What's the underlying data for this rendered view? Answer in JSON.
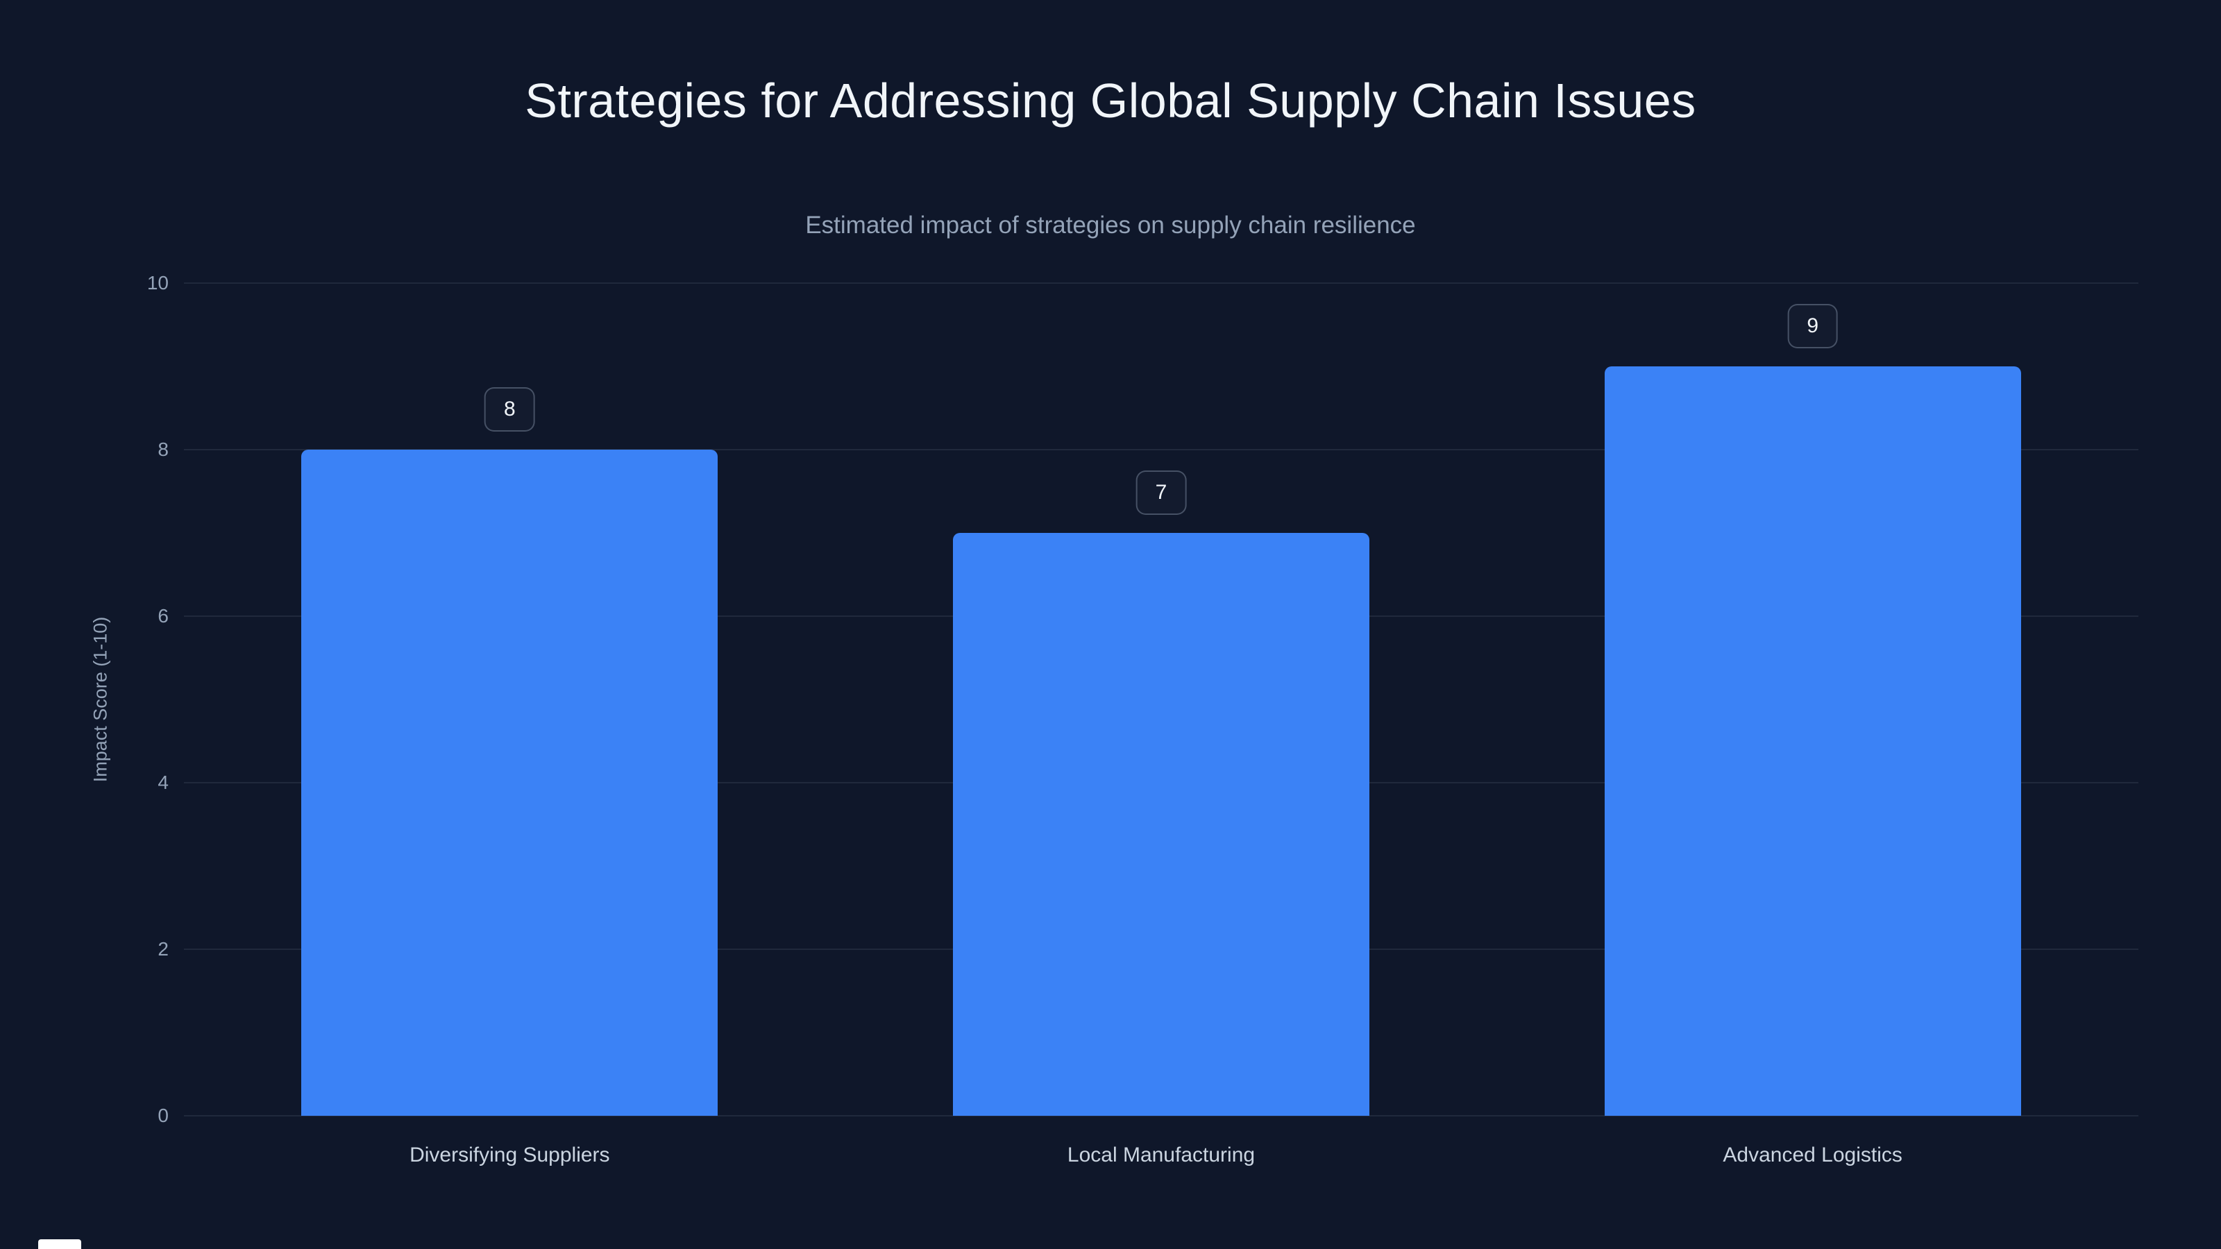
{
  "page": {
    "background_color": "#0f172a"
  },
  "header": {
    "title": "Strategies for Addressing Global Supply Chain Issues",
    "subtitle": "Estimated impact of strategies on supply chain resilience"
  },
  "chart_data": {
    "type": "bar",
    "title": "Strategies for Addressing Global Supply Chain Issues",
    "subtitle": "Estimated impact of strategies on supply chain resilience",
    "categories": [
      "Diversifying Suppliers",
      "Local Manufacturing",
      "Advanced Logistics"
    ],
    "values": [
      8,
      7,
      9
    ],
    "value_labels": [
      "8",
      "7",
      "9"
    ],
    "xlabel": "",
    "ylabel": "Impact Score (1-10)",
    "ylim": [
      0,
      10
    ],
    "yticks": [
      0,
      2,
      4,
      6,
      8,
      10
    ],
    "grid": true,
    "legend": false,
    "bar_color": "#3b82f6"
  }
}
